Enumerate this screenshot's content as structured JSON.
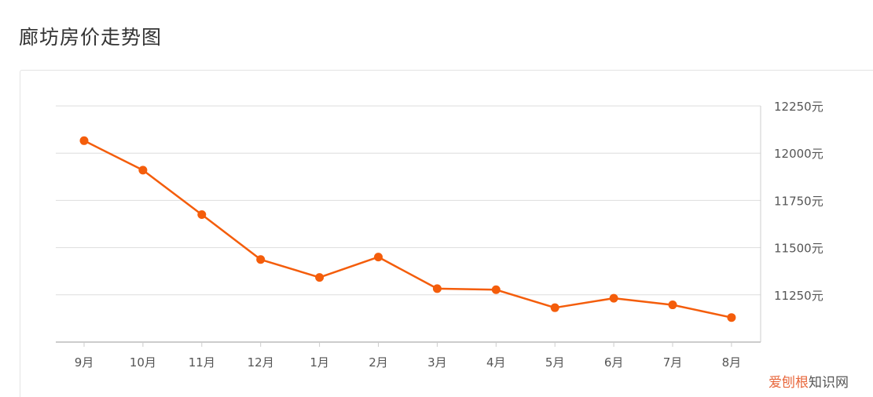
{
  "page": {
    "title": "廊坊房价走势图"
  },
  "watermark": {
    "part1": "爱刨根",
    "part2": "知识网"
  },
  "colors": {
    "line": "#f45d0b",
    "grid": "#dddddd",
    "axis": "#cccccc",
    "text": "#555555"
  },
  "chart_data": {
    "type": "line",
    "title": "",
    "xlabel": "",
    "ylabel": "",
    "categories": [
      "9月",
      "10月",
      "11月",
      "12月",
      "1月",
      "2月",
      "3月",
      "4月",
      "5月",
      "6月",
      "7月",
      "8月"
    ],
    "series": [
      {
        "values": [
          12066,
          11910,
          11675,
          11437,
          11342,
          11450,
          11283,
          11277,
          11182,
          11232,
          11197,
          11130
        ]
      }
    ],
    "ylim": [
      11000,
      12250
    ],
    "yticks": [
      11250,
      11500,
      11750,
      12000,
      12250
    ],
    "ytick_labels": [
      "11250元",
      "11500元",
      "11750元",
      "12000元",
      "12250元"
    ],
    "yaxis_position": "right",
    "grid": true,
    "legend": "none"
  }
}
